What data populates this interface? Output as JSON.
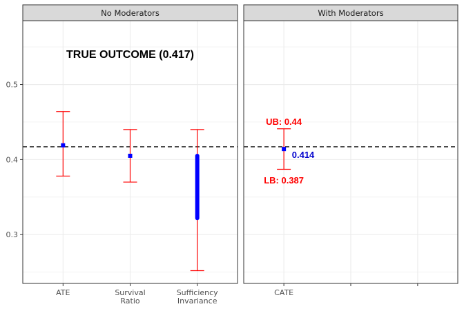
{
  "chart_data": {
    "type": "scatter",
    "y_scale": {
      "ylim": [
        0.235,
        0.585
      ],
      "ticks": [
        0.3,
        0.4,
        0.5
      ],
      "tick_labels": [
        "0.3",
        "0.4",
        "0.5"
      ]
    },
    "true_outcome": 0.417,
    "colors": {
      "error_bar": "#ff0000",
      "point": "#0000ff",
      "ref_line": "#000000",
      "strip_bg": "#d9d9d9",
      "grid": "#ebebeb",
      "panel_border": "#333333",
      "cate_tick": "#ff0000"
    },
    "panels": [
      {
        "title": "No Moderators",
        "categories": [
          {
            "label_lines": [
              "ATE"
            ],
            "point": 0.419,
            "lower": 0.378,
            "upper": 0.464
          },
          {
            "label_lines": [
              "Survival",
              "Ratio"
            ],
            "point": 0.405,
            "lower": 0.37,
            "upper": 0.44
          },
          {
            "label_lines": [
              "Sufficiency",
              "Invariance"
            ],
            "range_low": 0.322,
            "range_high": 0.405,
            "lower": 0.252,
            "upper": 0.44
          }
        ],
        "annotations": [
          {
            "text": "TRUE OUTCOME (0.417)",
            "x_cat": 1,
            "y": 0.54,
            "style": "big"
          }
        ]
      },
      {
        "title": "With Moderators",
        "categories": [
          {
            "label_lines": [
              "CATE"
            ],
            "point": 0.414,
            "lower": 0.387,
            "upper": 0.441
          },
          {
            "label_lines": [
              ""
            ]
          },
          {
            "label_lines": [
              ""
            ]
          }
        ],
        "annotations": [
          {
            "text": "UB: 0.44",
            "x_cat": 0,
            "y": 0.451,
            "style": "red"
          },
          {
            "text": "0.414",
            "x_cat": 0.12,
            "y": 0.407,
            "style": "blue"
          },
          {
            "text": "LB: 0.387",
            "x_cat": 0,
            "y": 0.373,
            "style": "red"
          }
        ]
      }
    ]
  }
}
